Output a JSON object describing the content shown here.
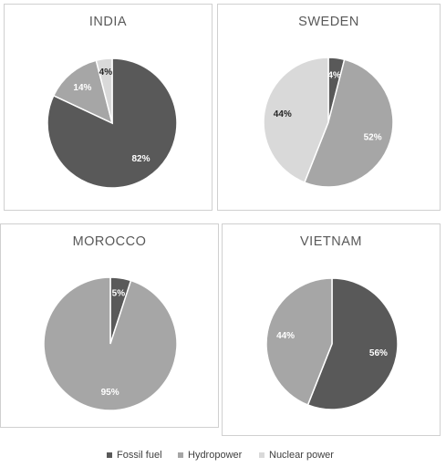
{
  "colors": {
    "fossil": "#595959",
    "hydro": "#a6a6a6",
    "nuclear": "#d9d9d9",
    "stroke": "#ffffff"
  },
  "legend": {
    "fossil": "Fossil fuel",
    "hydro": "Hydropower",
    "nuclear": "Nuclear power"
  },
  "chart_data": [
    {
      "type": "pie",
      "title": "INDIA",
      "slices": [
        {
          "name": "Fossil fuel",
          "value": 82,
          "label": "82%"
        },
        {
          "name": "Hydropower",
          "value": 14,
          "label": "14%"
        },
        {
          "name": "Nuclear power",
          "value": 4,
          "label": "4%"
        }
      ]
    },
    {
      "type": "pie",
      "title": "SWEDEN",
      "slices": [
        {
          "name": "Fossil fuel",
          "value": 4,
          "label": "4%"
        },
        {
          "name": "Hydropower",
          "value": 52,
          "label": "52%"
        },
        {
          "name": "Nuclear power",
          "value": 44,
          "label": "44%"
        }
      ]
    },
    {
      "type": "pie",
      "title": "MOROCCO",
      "slices": [
        {
          "name": "Fossil fuel",
          "value": 5,
          "label": "5%"
        },
        {
          "name": "Hydropower",
          "value": 95,
          "label": "95%"
        }
      ]
    },
    {
      "type": "pie",
      "title": "VIETNAM",
      "slices": [
        {
          "name": "Fossil fuel",
          "value": 56,
          "label": "56%"
        },
        {
          "name": "Hydropower",
          "value": 44,
          "label": "44%"
        }
      ]
    }
  ]
}
